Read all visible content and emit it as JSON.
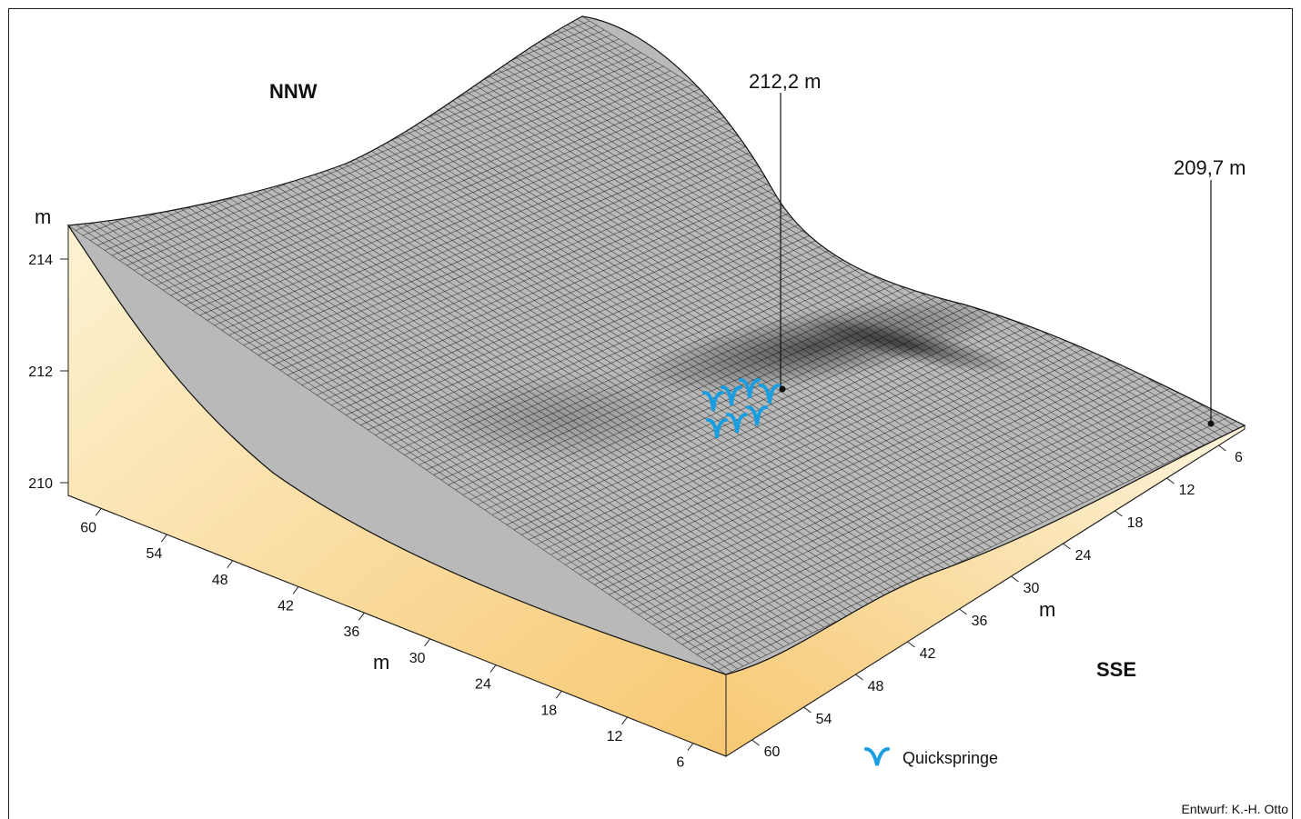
{
  "labels": {
    "nnw": "NNW",
    "sse": "SSE",
    "unit_vertical": "m",
    "unit_left": "m",
    "unit_right": "m",
    "peak_1": "212,2 m",
    "peak_2": "209,7 m",
    "legend": "Quickspringe",
    "credit": "Entwurf: K.-H. Otto"
  },
  "axes": {
    "vertical_ticks": [
      "214",
      "212",
      "210"
    ],
    "left_ticks": [
      "60",
      "54",
      "48",
      "42",
      "36",
      "30",
      "24",
      "18",
      "12",
      "6"
    ],
    "right_ticks": [
      "60",
      "54",
      "48",
      "42",
      "36",
      "30",
      "24",
      "18",
      "12",
      "6"
    ]
  },
  "legend_icon": "spring-symbol-icon",
  "colors": {
    "block_side": "#fbe3a8",
    "block_side_dark": "#f6c466",
    "mesh": "#1a1a1a",
    "spring": "#1a9ee0"
  }
}
